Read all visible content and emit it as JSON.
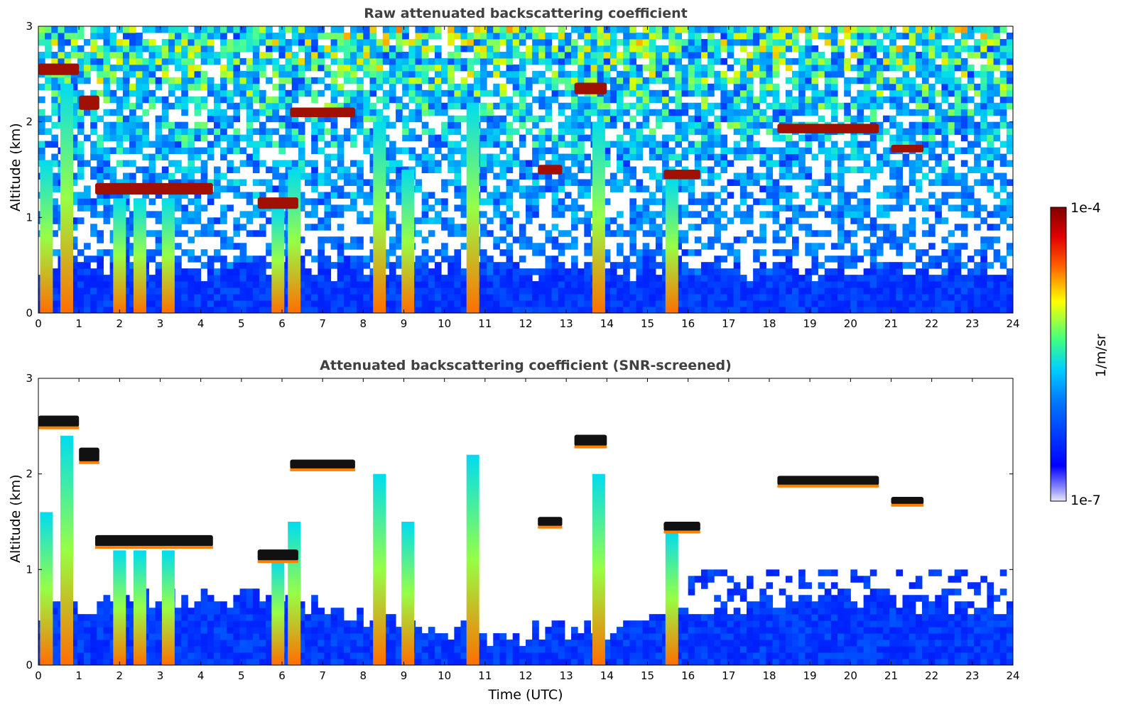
{
  "chart_data": [
    {
      "type": "heatmap",
      "title": "Raw attenuated backscattering coefficient",
      "xlabel": "",
      "ylabel": "Altitude (km)",
      "xlim": [
        0,
        24
      ],
      "ylim": [
        0,
        3
      ],
      "xticks": [
        "0",
        "1",
        "2",
        "3",
        "4",
        "5",
        "6",
        "7",
        "8",
        "9",
        "10",
        "11",
        "12",
        "13",
        "14",
        "15",
        "16",
        "17",
        "18",
        "19",
        "20",
        "21",
        "22",
        "23",
        "24"
      ],
      "yticks": [
        "0",
        "1",
        "2",
        "3"
      ],
      "screened": false,
      "cloud_features": [
        {
          "t0": 0.0,
          "t1": 1.0,
          "alt": 2.55,
          "thick": 0.12
        },
        {
          "t0": 1.0,
          "t1": 1.5,
          "alt": 2.2,
          "thick": 0.15
        },
        {
          "t0": 1.4,
          "t1": 4.3,
          "alt": 1.3,
          "thick": 0.12
        },
        {
          "t0": 5.4,
          "t1": 6.4,
          "alt": 1.15,
          "thick": 0.12
        },
        {
          "t0": 6.2,
          "t1": 7.8,
          "alt": 2.1,
          "thick": 0.1
        },
        {
          "t0": 12.3,
          "t1": 12.9,
          "alt": 1.5,
          "thick": 0.1
        },
        {
          "t0": 13.2,
          "t1": 14.0,
          "alt": 2.35,
          "thick": 0.12
        },
        {
          "t0": 15.4,
          "t1": 16.3,
          "alt": 1.45,
          "thick": 0.1
        },
        {
          "t0": 18.2,
          "t1": 20.7,
          "alt": 1.93,
          "thick": 0.1
        },
        {
          "t0": 21.0,
          "t1": 21.8,
          "alt": 1.72,
          "thick": 0.08
        }
      ],
      "precip_shafts": [
        {
          "t": 0.2,
          "top": 1.6
        },
        {
          "t": 0.7,
          "top": 2.4
        },
        {
          "t": 2.0,
          "top": 1.2
        },
        {
          "t": 2.5,
          "top": 1.2
        },
        {
          "t": 3.2,
          "top": 1.2
        },
        {
          "t": 5.9,
          "top": 1.1
        },
        {
          "t": 6.3,
          "top": 1.5
        },
        {
          "t": 8.4,
          "top": 2.0
        },
        {
          "t": 9.1,
          "top": 1.5
        },
        {
          "t": 10.7,
          "top": 2.2
        },
        {
          "t": 13.8,
          "top": 2.0
        },
        {
          "t": 15.6,
          "top": 1.4
        }
      ]
    },
    {
      "type": "heatmap",
      "title": "Attenuated backscattering coefficient (SNR-screened)",
      "xlabel": "Time (UTC)",
      "ylabel": "Altitude (km)",
      "xlim": [
        0,
        24
      ],
      "ylim": [
        0,
        3
      ],
      "xticks": [
        "0",
        "1",
        "2",
        "3",
        "4",
        "5",
        "6",
        "7",
        "8",
        "9",
        "10",
        "11",
        "12",
        "13",
        "14",
        "15",
        "16",
        "17",
        "18",
        "19",
        "20",
        "21",
        "22",
        "23",
        "24"
      ],
      "yticks": [
        "0",
        "1",
        "2",
        "3"
      ],
      "screened": true,
      "cloud_features": [
        {
          "t0": 0.0,
          "t1": 1.0,
          "alt": 2.55,
          "thick": 0.12
        },
        {
          "t0": 1.0,
          "t1": 1.5,
          "alt": 2.2,
          "thick": 0.15
        },
        {
          "t0": 1.4,
          "t1": 4.3,
          "alt": 1.3,
          "thick": 0.12
        },
        {
          "t0": 5.4,
          "t1": 6.4,
          "alt": 1.15,
          "thick": 0.12
        },
        {
          "t0": 6.2,
          "t1": 7.8,
          "alt": 2.1,
          "thick": 0.1
        },
        {
          "t0": 12.3,
          "t1": 12.9,
          "alt": 1.5,
          "thick": 0.1
        },
        {
          "t0": 13.2,
          "t1": 14.0,
          "alt": 2.35,
          "thick": 0.12
        },
        {
          "t0": 15.4,
          "t1": 16.3,
          "alt": 1.45,
          "thick": 0.1
        },
        {
          "t0": 18.2,
          "t1": 20.7,
          "alt": 1.93,
          "thick": 0.1
        },
        {
          "t0": 21.0,
          "t1": 21.8,
          "alt": 1.72,
          "thick": 0.08
        }
      ],
      "precip_shafts": [
        {
          "t": 0.2,
          "top": 1.6
        },
        {
          "t": 0.7,
          "top": 2.4
        },
        {
          "t": 2.0,
          "top": 1.2
        },
        {
          "t": 2.5,
          "top": 1.2
        },
        {
          "t": 3.2,
          "top": 1.2
        },
        {
          "t": 5.9,
          "top": 1.1
        },
        {
          "t": 6.3,
          "top": 1.5
        },
        {
          "t": 8.4,
          "top": 2.0
        },
        {
          "t": 9.1,
          "top": 1.5
        },
        {
          "t": 10.7,
          "top": 2.2
        },
        {
          "t": 13.8,
          "top": 2.0
        },
        {
          "t": 15.6,
          "top": 1.4
        }
      ]
    }
  ],
  "colorbar": {
    "max_label": "1e-4",
    "min_label": "1e-7",
    "unit_label": "1/m/sr",
    "colormap": "jet",
    "colors": [
      "#e8e8f8",
      "#0000ff",
      "#00c8ff",
      "#ffff00",
      "#ff3000",
      "#800000"
    ]
  }
}
